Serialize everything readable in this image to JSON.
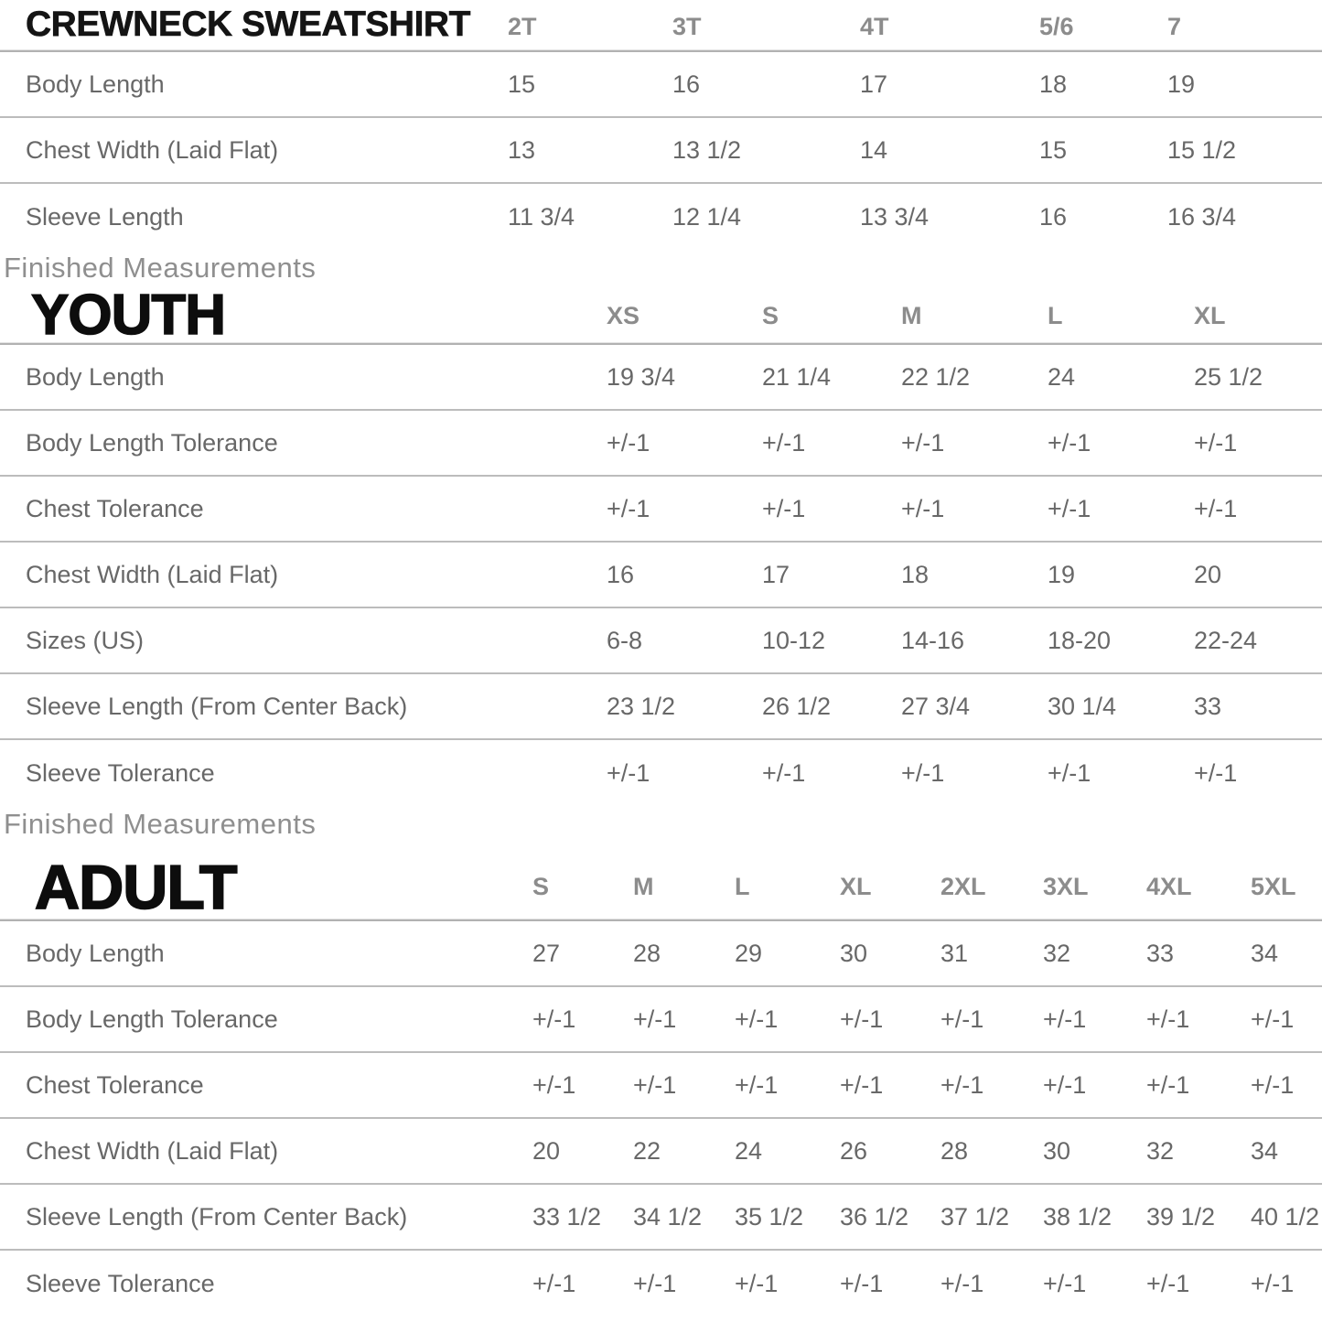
{
  "colors": {
    "title_text": "#141414",
    "column_header_text": "#8c8c8c",
    "body_text": "#686868",
    "section_label_text": "#8f8f8f",
    "divider": "#b2b2b2",
    "background": "#ffffff"
  },
  "toddler_table": {
    "title": "CREWNECK SWEATSHIRT",
    "columns": [
      "2T",
      "3T",
      "4T",
      "5/6",
      "7"
    ],
    "rows": [
      {
        "label": "Body Length",
        "values": [
          "15",
          "16",
          "17",
          "18",
          "19"
        ]
      },
      {
        "label": "Chest Width (Laid Flat)",
        "values": [
          "13",
          "13 1/2",
          "14",
          "15",
          "15 1/2"
        ]
      },
      {
        "label": "Sleeve Length",
        "values": [
          "11 3/4",
          "12 1/4",
          "13 3/4",
          "16",
          "16 3/4"
        ]
      }
    ]
  },
  "youth_table": {
    "section_label": "Finished Measurements",
    "title": "YOUTH",
    "columns": [
      "XS",
      "S",
      "M",
      "L",
      "XL"
    ],
    "rows": [
      {
        "label": "Body Length",
        "values": [
          "19 3/4",
          "21 1/4",
          "22 1/2",
          "24",
          "25 1/2"
        ]
      },
      {
        "label": "Body Length Tolerance",
        "values": [
          "+/-1",
          "+/-1",
          "+/-1",
          "+/-1",
          "+/-1"
        ]
      },
      {
        "label": "Chest Tolerance",
        "values": [
          "+/-1",
          "+/-1",
          "+/-1",
          "+/-1",
          "+/-1"
        ]
      },
      {
        "label": "Chest Width (Laid Flat)",
        "values": [
          "16",
          "17",
          "18",
          "19",
          "20"
        ]
      },
      {
        "label": "Sizes (US)",
        "values": [
          "6-8",
          "10-12",
          "14-16",
          "18-20",
          "22-24"
        ]
      },
      {
        "label": "Sleeve Length (From Center Back)",
        "values": [
          "23 1/2",
          "26 1/2",
          "27 3/4",
          "30 1/4",
          "33"
        ]
      },
      {
        "label": "Sleeve Tolerance",
        "values": [
          "+/-1",
          "+/-1",
          "+/-1",
          "+/-1",
          "+/-1"
        ]
      }
    ]
  },
  "adult_table": {
    "section_label": "Finished Measurements",
    "title": "ADULT",
    "columns": [
      "S",
      "M",
      "L",
      "XL",
      "2XL",
      "3XL",
      "4XL",
      "5XL"
    ],
    "rows": [
      {
        "label": "Body Length",
        "values": [
          "27",
          "28",
          "29",
          "30",
          "31",
          "32",
          "33",
          "34"
        ]
      },
      {
        "label": "Body Length Tolerance",
        "values": [
          "+/-1",
          "+/-1",
          "+/-1",
          "+/-1",
          "+/-1",
          "+/-1",
          "+/-1",
          "+/-1"
        ]
      },
      {
        "label": "Chest Tolerance",
        "values": [
          "+/-1",
          "+/-1",
          "+/-1",
          "+/-1",
          "+/-1",
          "+/-1",
          "+/-1",
          "+/-1"
        ]
      },
      {
        "label": "Chest Width (Laid Flat)",
        "values": [
          "20",
          "22",
          "24",
          "26",
          "28",
          "30",
          "32",
          "34"
        ]
      },
      {
        "label": "Sleeve Length (From Center Back)",
        "values": [
          "33 1/2",
          "34 1/2",
          "35 1/2",
          "36 1/2",
          "37 1/2",
          "38 1/2",
          "39 1/2",
          "40 1/2"
        ]
      },
      {
        "label": "Sleeve Tolerance",
        "values": [
          "+/-1",
          "+/-1",
          "+/-1",
          "+/-1",
          "+/-1",
          "+/-1",
          "+/-1",
          "+/-1"
        ]
      }
    ]
  }
}
